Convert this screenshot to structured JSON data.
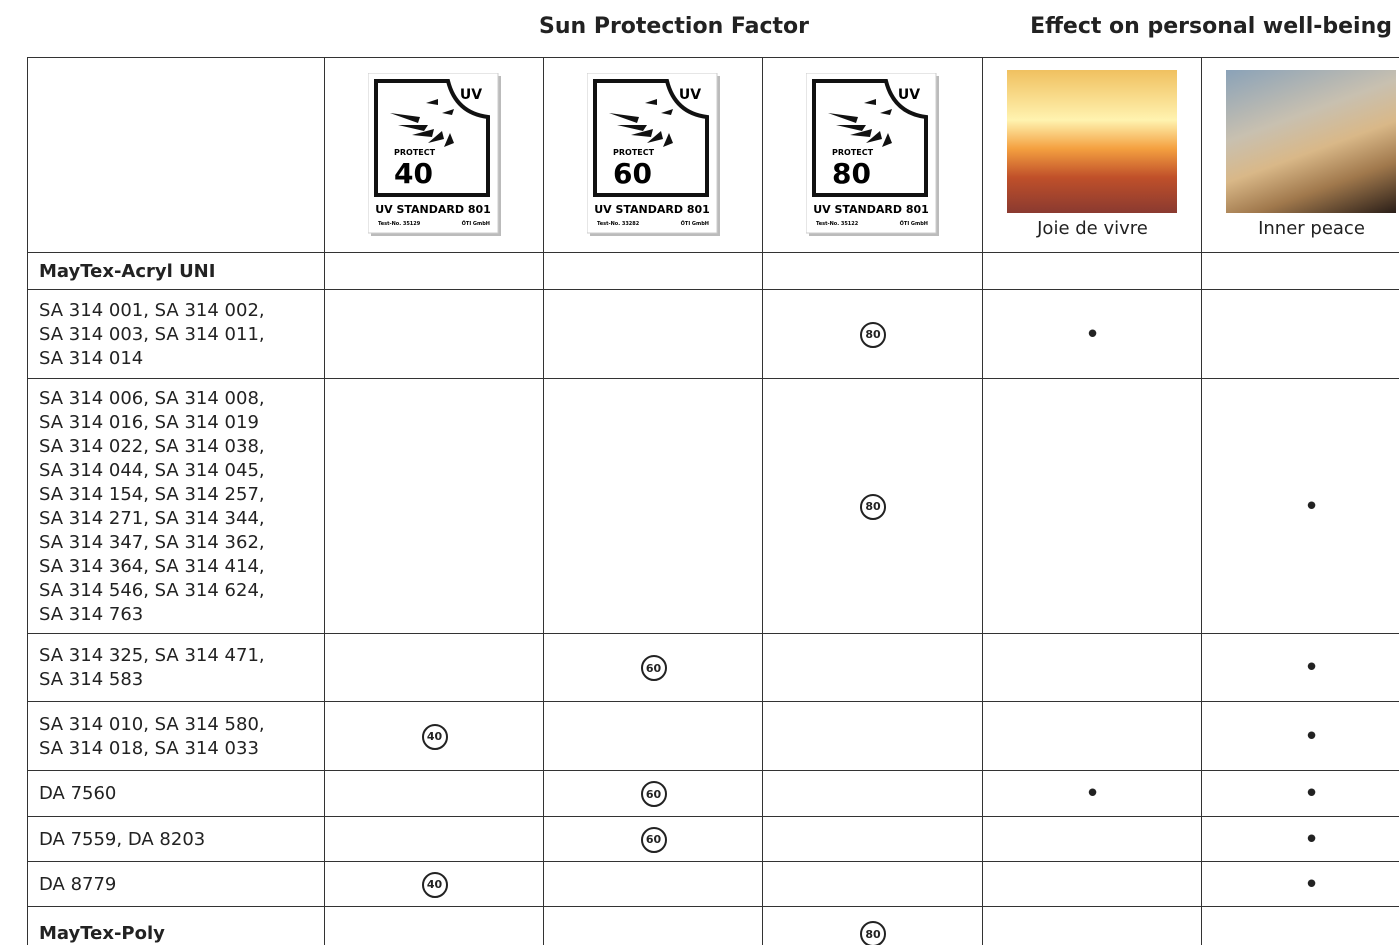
{
  "header": {
    "groups": [
      "Sun Protection Factor",
      "Effect on personal well-being"
    ]
  },
  "table": {
    "labels": [
      {
        "corner": "UV",
        "protect": "PROTECT",
        "factor": "40",
        "standard": "UV STANDARD 801",
        "test": "Test-No. 35129",
        "lab": "ÖTI GmbH"
      },
      {
        "corner": "UV",
        "protect": "PROTECT",
        "factor": "60",
        "standard": "UV STANDARD 801",
        "test": "Test-No. 33282",
        "lab": "ÖTI GmbH"
      },
      {
        "corner": "UV",
        "protect": "PROTECT",
        "factor": "80",
        "standard": "UV STANDARD 801",
        "test": "Test-No. 35122",
        "lab": "ÖTI GmbH"
      }
    ],
    "photos": [
      "Joie de vivre",
      "Inner peace"
    ],
    "rows": [
      {
        "group": "MayTex-Acryl UNI",
        "cells": [
          null,
          null,
          null,
          null,
          null
        ]
      },
      {
        "lines": [
          "SA 314 001, SA 314 002,",
          "SA 314 003, SA 314 011,",
          "SA 314 014"
        ],
        "cells": [
          null,
          null,
          "80",
          "•",
          null
        ]
      },
      {
        "lines": [
          "SA 314 006, SA 314 008,",
          "SA 314 016, SA 314 019",
          "SA 314 022, SA 314 038,",
          "SA 314 044, SA 314 045,",
          "SA 314 154, SA 314 257,",
          "SA 314 271, SA 314 344,",
          "SA 314 347, SA 314 362,",
          "SA 314 364, SA 314 414,",
          "SA 314 546, SA 314 624,",
          "SA 314 763"
        ],
        "cells": [
          null,
          null,
          "80",
          null,
          "•"
        ]
      },
      {
        "lines": [
          "SA 314 325, SA 314 471,",
          "SA 314 583"
        ],
        "cells": [
          null,
          "60",
          null,
          null,
          "•"
        ]
      },
      {
        "lines": [
          "SA 314 010, SA 314 580,",
          "SA 314 018, SA 314 033"
        ],
        "cells": [
          "40",
          null,
          null,
          null,
          "•"
        ]
      },
      {
        "lines": [
          "DA 7560"
        ],
        "cells": [
          null,
          "60",
          null,
          "•",
          "•"
        ]
      },
      {
        "lines": [
          "DA 7559, DA 8203"
        ],
        "cells": [
          null,
          "60",
          null,
          null,
          "•"
        ]
      },
      {
        "lines": [
          "DA 8779"
        ],
        "cells": [
          "40",
          null,
          null,
          null,
          "•"
        ]
      },
      {
        "group": "MayTex-Poly",
        "cells": [
          null,
          null,
          "80",
          null,
          null
        ]
      }
    ]
  }
}
